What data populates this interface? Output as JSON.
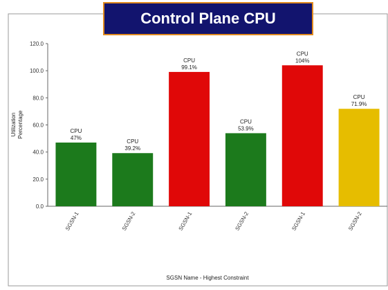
{
  "chart_data": {
    "type": "bar",
    "title": "Control Plane CPU",
    "ylabel": [
      "Utilization",
      "Percentage"
    ],
    "xlabel": "SGSN Name - Highest Constraint",
    "categories": [
      "SGSN-1",
      "SGSN-2",
      "SGSN-1",
      "SGSN-2",
      "SGSN-1",
      "SGSN-2"
    ],
    "series": [
      {
        "name": "CPU",
        "values": [
          47,
          39.2,
          99.1,
          53.9,
          104,
          71.9
        ],
        "value_labels": [
          "47%",
          "39.2%",
          "99.1%",
          "53.9%",
          "104%",
          "71.9%"
        ],
        "colors": [
          "#1c7a1c",
          "#1c7a1c",
          "#e00808",
          "#1c7a1c",
          "#e00808",
          "#e6bd00"
        ]
      }
    ],
    "ylim": [
      0,
      120
    ],
    "yticks": [
      {
        "value": 0,
        "label": "0.0"
      },
      {
        "value": 20,
        "label": "20.0"
      },
      {
        "value": 40,
        "label": "40.0"
      },
      {
        "value": 60,
        "label": "60.0"
      },
      {
        "value": 80,
        "label": "80.0"
      },
      {
        "value": 100,
        "label": "100.0"
      },
      {
        "value": 120,
        "label": "120.0"
      }
    ]
  }
}
